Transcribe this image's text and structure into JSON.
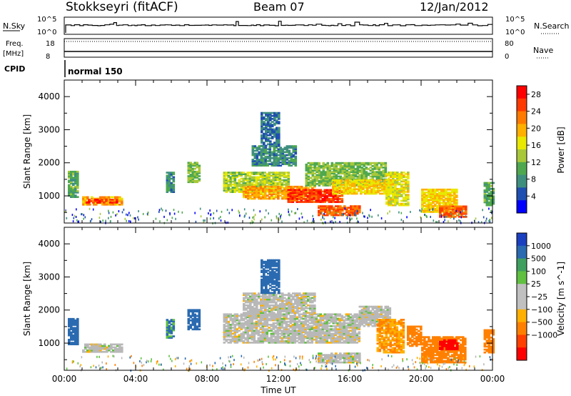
{
  "header": {
    "title": "Stokkseyri (fitACF)",
    "beam": "Beam 07",
    "date": "12/Jan/2012"
  },
  "strips": {
    "nsky_label": "N.Sky",
    "nsky_top": "10^5",
    "nsky_bottom": "10^0",
    "nsearch_label": "N.Search",
    "nsearch_top": "10^5",
    "nsearch_bottom": "10^0",
    "freq_label": "Freq.",
    "freq_unit": "[MHz]",
    "freq_top": "18",
    "freq_bottom": "8",
    "nave_label": "Nave",
    "nave_top": "80",
    "nave_bottom": "0",
    "cpid_label": "CPID",
    "cpid_value": "normal 150"
  },
  "colors": {
    "power_scale": [
      "#0000ff",
      "#1f4fb0",
      "#3f8f7f",
      "#4fa84f",
      "#a8c83a",
      "#e8e800",
      "#ffb000",
      "#ff7a00",
      "#ff3a00",
      "#ff0000"
    ],
    "velocity_scale": [
      "#ff0000",
      "#ff4000",
      "#ff8000",
      "#ffb000",
      "#c0c0c0",
      "#c0c0c0",
      "#60c040",
      "#3f9f5f",
      "#2a6ab0",
      "#1a40c0"
    ],
    "ground_scatter": "#b8b8b8"
  },
  "chart_data": [
    {
      "type": "heatmap",
      "name": "power",
      "xlabel": "Time UT",
      "ylabel": "Slant Range [km]",
      "x_ticks": [
        "00:00",
        "04:00",
        "08:00",
        "12:00",
        "16:00",
        "20:00",
        "00:00"
      ],
      "y_ticks": [
        "1000",
        "2000",
        "3000",
        "4000"
      ],
      "xlim_hours": [
        0,
        24
      ],
      "ylim_km": [
        180,
        4500
      ],
      "colorbar": {
        "label": "Power [dB]",
        "ticks": [
          "4",
          "8",
          "12",
          "16",
          "20",
          "24",
          "28"
        ],
        "range": [
          0,
          30
        ]
      },
      "regions": [
        {
          "t0": 0.2,
          "t1": 0.7,
          "r0": 950,
          "r1": 1750,
          "value": 10
        },
        {
          "t0": 1.0,
          "t1": 3.2,
          "r0": 720,
          "r1": 950,
          "value": 20
        },
        {
          "t0": 1.2,
          "t1": 3.0,
          "r0": 780,
          "r1": 880,
          "value": 26
        },
        {
          "t0": 5.7,
          "t1": 6.1,
          "r0": 1100,
          "r1": 1700,
          "value": 8
        },
        {
          "t0": 6.9,
          "t1": 7.6,
          "r0": 1400,
          "r1": 2000,
          "value": 12
        },
        {
          "t0": 8.9,
          "t1": 12.5,
          "r0": 1100,
          "r1": 1700,
          "value": 14
        },
        {
          "t0": 10.0,
          "t1": 14.0,
          "r0": 900,
          "r1": 1300,
          "value": 20
        },
        {
          "t0": 12.5,
          "t1": 15.5,
          "r0": 800,
          "r1": 1200,
          "value": 26
        },
        {
          "t0": 10.5,
          "t1": 13.0,
          "r0": 1900,
          "r1": 2500,
          "value": 8
        },
        {
          "t0": 11.0,
          "t1": 12.0,
          "r0": 2500,
          "r1": 3500,
          "value": 6
        },
        {
          "t0": 14.2,
          "t1": 16.5,
          "r0": 400,
          "r1": 700,
          "value": 24
        },
        {
          "t0": 13.5,
          "t1": 18.0,
          "r0": 1300,
          "r1": 2000,
          "value": 12
        },
        {
          "t0": 15.0,
          "t1": 18.6,
          "r0": 1050,
          "r1": 1500,
          "value": 18
        },
        {
          "t0": 18.0,
          "t1": 19.3,
          "r0": 700,
          "r1": 1700,
          "value": 16
        },
        {
          "t0": 20.0,
          "t1": 22.0,
          "r0": 500,
          "r1": 1200,
          "value": 18
        },
        {
          "t0": 21.0,
          "t1": 22.5,
          "r0": 350,
          "r1": 700,
          "value": 24
        },
        {
          "t0": 23.5,
          "t1": 24.0,
          "r0": 700,
          "r1": 1400,
          "value": 10
        }
      ]
    },
    {
      "type": "heatmap",
      "name": "velocity",
      "xlabel": "Time UT",
      "ylabel": "Slant Range [km]",
      "x_ticks": [
        "00:00",
        "04:00",
        "08:00",
        "12:00",
        "16:00",
        "20:00",
        "00:00"
      ],
      "y_ticks": [
        "1000",
        "2000",
        "3000",
        "4000"
      ],
      "xlim_hours": [
        0,
        24
      ],
      "ylim_km": [
        180,
        4500
      ],
      "colorbar": {
        "label": "Velocity [m s^-1]",
        "ticks": [
          "1000",
          "500",
          "100",
          "25",
          "−25",
          "−100",
          "−500",
          "−1000"
        ]
      },
      "regions": [
        {
          "t0": 0.2,
          "t1": 0.7,
          "r0": 950,
          "r1": 1750,
          "value": 200
        },
        {
          "t0": 1.0,
          "t1": 3.2,
          "r0": 720,
          "r1": 950,
          "value": 0
        },
        {
          "t0": 5.7,
          "t1": 6.1,
          "r0": 1100,
          "r1": 1700,
          "value": 100
        },
        {
          "t0": 6.9,
          "t1": 7.6,
          "r0": 1400,
          "r1": 2000,
          "value": 150
        },
        {
          "t0": 8.9,
          "t1": 16.5,
          "r0": 1000,
          "r1": 1900,
          "value": 0
        },
        {
          "t0": 10.0,
          "t1": 14.0,
          "r0": 1900,
          "r1": 2500,
          "value": 0
        },
        {
          "t0": 11.0,
          "t1": 12.0,
          "r0": 2500,
          "r1": 3500,
          "value": 200
        },
        {
          "t0": 14.2,
          "t1": 16.5,
          "r0": 400,
          "r1": 700,
          "value": 0
        },
        {
          "t0": 16.5,
          "t1": 18.3,
          "r0": 1500,
          "r1": 2100,
          "value": 0
        },
        {
          "t0": 17.5,
          "t1": 19.0,
          "r0": 700,
          "r1": 1700,
          "value": -100
        },
        {
          "t0": 19.2,
          "t1": 20.0,
          "r0": 900,
          "r1": 1500,
          "value": -400
        },
        {
          "t0": 20.0,
          "t1": 22.5,
          "r0": 400,
          "r1": 1200,
          "value": -300
        },
        {
          "t0": 21.0,
          "t1": 22.0,
          "r0": 800,
          "r1": 1100,
          "value": -800
        },
        {
          "t0": 23.5,
          "t1": 24.0,
          "r0": 700,
          "r1": 1400,
          "value": -200
        }
      ]
    }
  ]
}
